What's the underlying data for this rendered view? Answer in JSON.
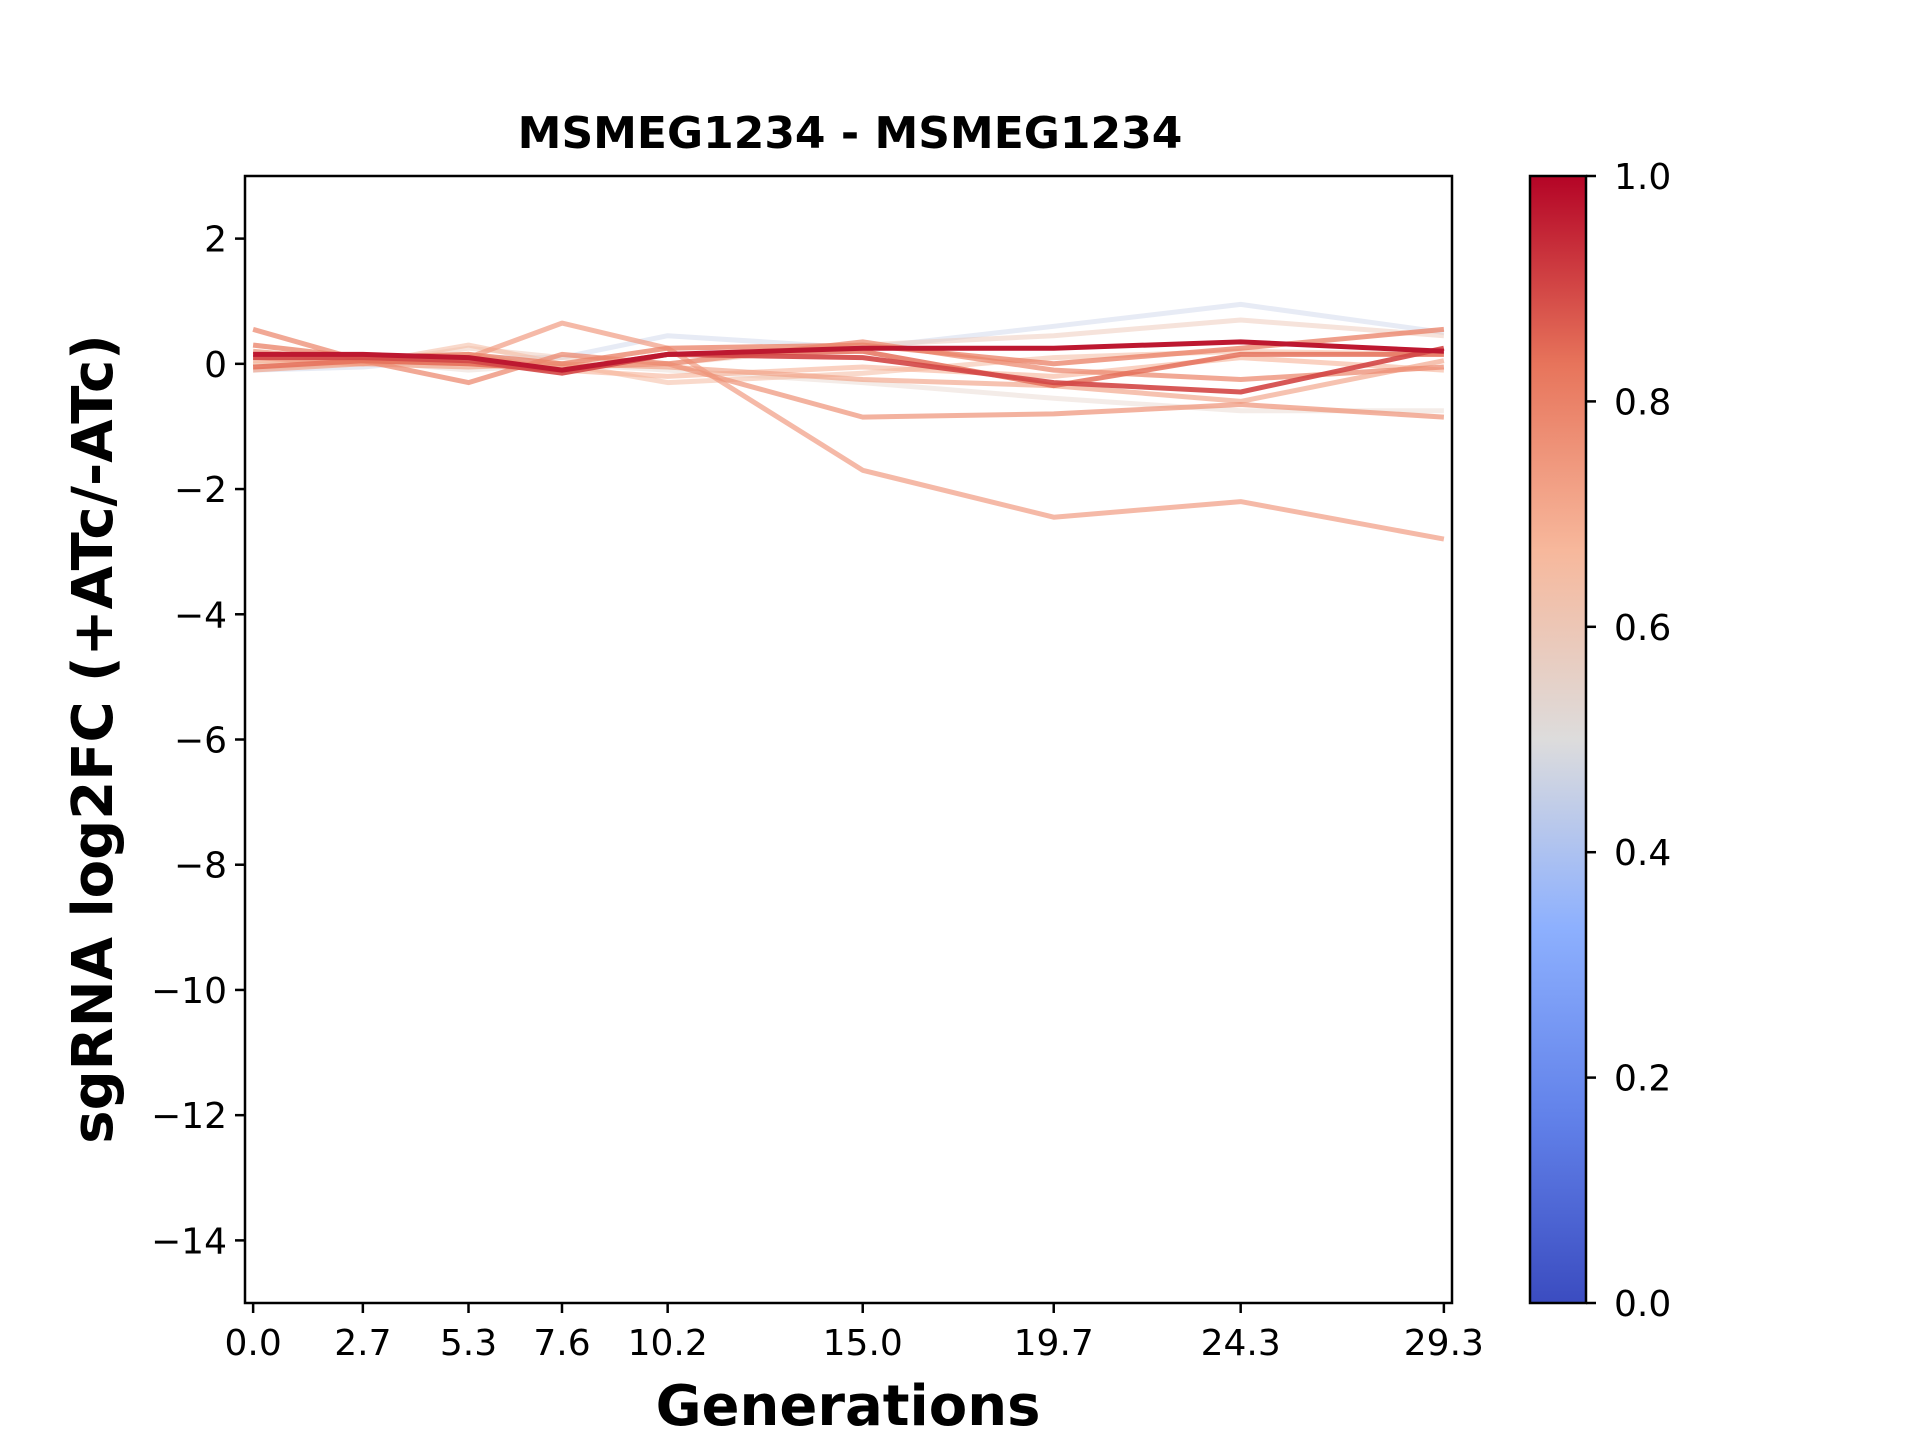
{
  "chart_data": {
    "type": "line",
    "title": "MSMEG1234 - MSMEG1234",
    "xlabel": "Generations",
    "ylabel": "sgRNA log2FC (+ATc/-ATc)",
    "x": [
      0.0,
      2.7,
      5.3,
      7.6,
      10.2,
      15.0,
      19.7,
      24.3,
      29.3
    ],
    "x_tick_labels": [
      "0.0",
      "2.7",
      "5.3",
      "7.6",
      "10.2",
      "15.0",
      "19.7",
      "24.3",
      "29.3"
    ],
    "xlim": [
      -0.2,
      29.5
    ],
    "ylim": [
      -15,
      3
    ],
    "y_ticks": [
      2,
      0,
      -2,
      -4,
      -6,
      -8,
      -10,
      -12,
      -14
    ],
    "y_tick_labels": [
      "2",
      "0",
      "−2",
      "−4",
      "−6",
      "−8",
      "−10",
      "−12",
      "−14"
    ],
    "colorbar": {
      "range": [
        0.0,
        1.0
      ],
      "ticks": [
        0.0,
        0.2,
        0.4,
        0.6,
        0.8,
        1.0
      ],
      "tick_labels": [
        "0.0",
        "0.2",
        "0.4",
        "0.6",
        "0.8",
        "1.0"
      ],
      "colormap": "coolwarm",
      "colors": [
        "#3b4cc0",
        "#7396f5",
        "#b0cbfc",
        "#dcdddd",
        "#f6bfa6",
        "#ea7b60",
        "#b40426"
      ]
    },
    "series": [
      {
        "color_value": 0.45,
        "values": [
          -0.1,
          -0.05,
          0.1,
          0.1,
          0.45,
          0.25,
          0.6,
          0.95,
          0.5
        ]
      },
      {
        "color_value": 0.55,
        "values": [
          0.0,
          0.05,
          -0.1,
          0.0,
          -0.1,
          -0.3,
          -0.55,
          -0.75,
          -0.75
        ]
      },
      {
        "color_value": 0.6,
        "values": [
          -0.05,
          0.0,
          0.25,
          0.1,
          0.0,
          0.3,
          0.45,
          0.7,
          0.45
        ]
      },
      {
        "color_value": 0.65,
        "values": [
          0.0,
          0.0,
          0.3,
          0.0,
          -0.3,
          -0.15,
          0.1,
          0.2,
          0.15
        ]
      },
      {
        "color_value": 0.68,
        "values": [
          0.05,
          0.05,
          0.15,
          -0.1,
          -0.2,
          -0.05,
          -0.2,
          0.1,
          -0.1
        ]
      },
      {
        "color_value": 0.72,
        "values": [
          -0.1,
          0.0,
          -0.05,
          0.0,
          -0.05,
          -0.25,
          -0.35,
          -0.6,
          0.05
        ]
      },
      {
        "color_value": 0.74,
        "values": [
          0.1,
          0.0,
          0.1,
          0.65,
          0.25,
          -1.7,
          -2.45,
          -2.2,
          -2.8
        ]
      },
      {
        "color_value": 0.76,
        "values": [
          0.2,
          0.05,
          0.0,
          -0.05,
          0.0,
          -0.85,
          -0.8,
          -0.65,
          -0.85
        ]
      },
      {
        "color_value": 0.78,
        "values": [
          0.55,
          0.05,
          -0.3,
          0.15,
          0.0,
          0.35,
          -0.1,
          -0.25,
          -0.05
        ]
      },
      {
        "color_value": 0.8,
        "values": [
          0.3,
          0.1,
          0.15,
          0.0,
          0.25,
          0.3,
          0.0,
          0.25,
          0.55
        ]
      },
      {
        "color_value": 0.84,
        "values": [
          -0.05,
          0.05,
          0.0,
          -0.1,
          0.15,
          0.2,
          -0.35,
          0.15,
          0.15
        ]
      },
      {
        "color_value": 0.9,
        "values": [
          0.1,
          0.1,
          0.05,
          -0.15,
          0.15,
          0.1,
          -0.3,
          -0.45,
          0.25
        ]
      },
      {
        "color_value": 0.97,
        "values": [
          0.15,
          0.15,
          0.1,
          -0.1,
          0.15,
          0.25,
          0.25,
          0.35,
          0.2
        ]
      }
    ]
  }
}
